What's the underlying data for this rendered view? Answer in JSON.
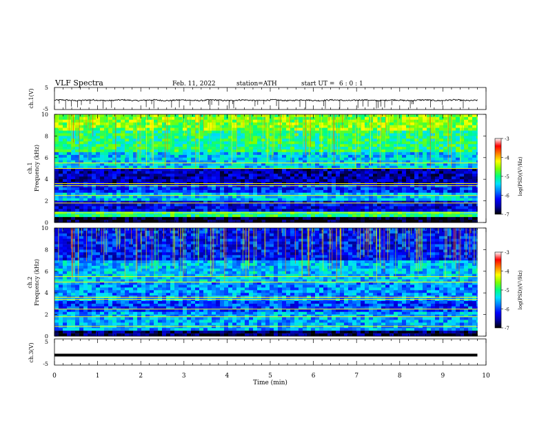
{
  "header": {
    "title": "VLF  Spectra",
    "date": "Feb. 11, 2022",
    "station": "station=ATH",
    "start_label": "start  UT  =",
    "start_time": "6  : 0  : 1"
  },
  "chart_data": [
    {
      "type": "line",
      "panel": "ch1-waveform",
      "ylabel": "ch.1(V)",
      "ylim": [
        -5,
        5
      ],
      "yticks": [
        "5",
        "-5"
      ],
      "xlim": [
        0,
        10
      ],
      "x_range_data": [
        0,
        9.8
      ],
      "baseline": -0.8,
      "noise_amplitude": 0.6,
      "color": "#000000"
    },
    {
      "type": "heatmap",
      "panel": "ch1-spectrogram",
      "ylabel": "ch.1\nFrequency  (kHz)",
      "ylim": [
        0,
        10
      ],
      "yticks": [
        "0",
        "2",
        "4",
        "6",
        "8",
        "10"
      ],
      "xlim": [
        0,
        10
      ],
      "x_range_data": [
        0,
        9.8
      ],
      "bands_khz": [
        {
          "from": 0,
          "to": 0.5,
          "level": -7.0
        },
        {
          "from": 0.5,
          "to": 1.0,
          "level": -5.0
        },
        {
          "from": 1.0,
          "to": 2.0,
          "level": -6.3
        },
        {
          "from": 2.0,
          "to": 2.8,
          "level": -5.5
        },
        {
          "from": 2.8,
          "to": 3.5,
          "level": -6.1
        },
        {
          "from": 3.5,
          "to": 4.9,
          "level": -6.5
        },
        {
          "from": 4.9,
          "to": 6.5,
          "level": -5.5
        },
        {
          "from": 6.5,
          "to": 8.5,
          "level": -5.0
        },
        {
          "from": 8.5,
          "to": 10,
          "level": -4.6
        }
      ],
      "colorbar": {
        "label": "log(PSD)(V²/Hz)",
        "range": [
          -7,
          -3
        ],
        "ticks": [
          "-3",
          "-4",
          "-5",
          "-6",
          "-7"
        ]
      }
    },
    {
      "type": "heatmap",
      "panel": "ch2-spectrogram",
      "ylabel": "ch.2\nFrequency  (kHz)",
      "ylim": [
        0,
        10
      ],
      "yticks": [
        "0",
        "2",
        "4",
        "6",
        "8",
        "10"
      ],
      "xlim": [
        0,
        10
      ],
      "x_range_data": [
        0,
        9.8
      ],
      "bands_khz": [
        {
          "from": 0,
          "to": 0.6,
          "level": -6.8
        },
        {
          "from": 0.6,
          "to": 2.2,
          "level": -5.6
        },
        {
          "from": 2.2,
          "to": 3.2,
          "level": -6.0
        },
        {
          "from": 3.2,
          "to": 5.0,
          "level": -5.7
        },
        {
          "from": 5.0,
          "to": 7.0,
          "level": -5.5
        },
        {
          "from": 7.0,
          "to": 10,
          "level": -6.2
        }
      ],
      "colorbar": {
        "label": "log(PSD)(V²/Hz)",
        "range": [
          -7,
          -3
        ],
        "ticks": [
          "-3",
          "-4",
          "-5",
          "-6",
          "-7"
        ]
      }
    },
    {
      "type": "line",
      "panel": "ch3-waveform",
      "ylabel": "ch.3(V)",
      "ylim": [
        -5,
        5
      ],
      "yticks": [
        "5",
        "-5"
      ],
      "xlim": [
        0,
        10
      ],
      "x_range_data": [
        0,
        9.8
      ],
      "baseline": -1.2,
      "noise_amplitude": 0.0,
      "color": "#000000"
    }
  ],
  "xaxis": {
    "xlabel": "Time  (min)",
    "ticks": [
      "0",
      "1",
      "2",
      "3",
      "4",
      "5",
      "6",
      "7",
      "8",
      "9",
      "10"
    ]
  },
  "colors": {
    "colormap": [
      "#000000",
      "#0000a0",
      "#0000ff",
      "#0078ff",
      "#00e0ff",
      "#00ff80",
      "#7fff00",
      "#ffff00",
      "#ff8000",
      "#ff0000",
      "#ffffff"
    ]
  }
}
